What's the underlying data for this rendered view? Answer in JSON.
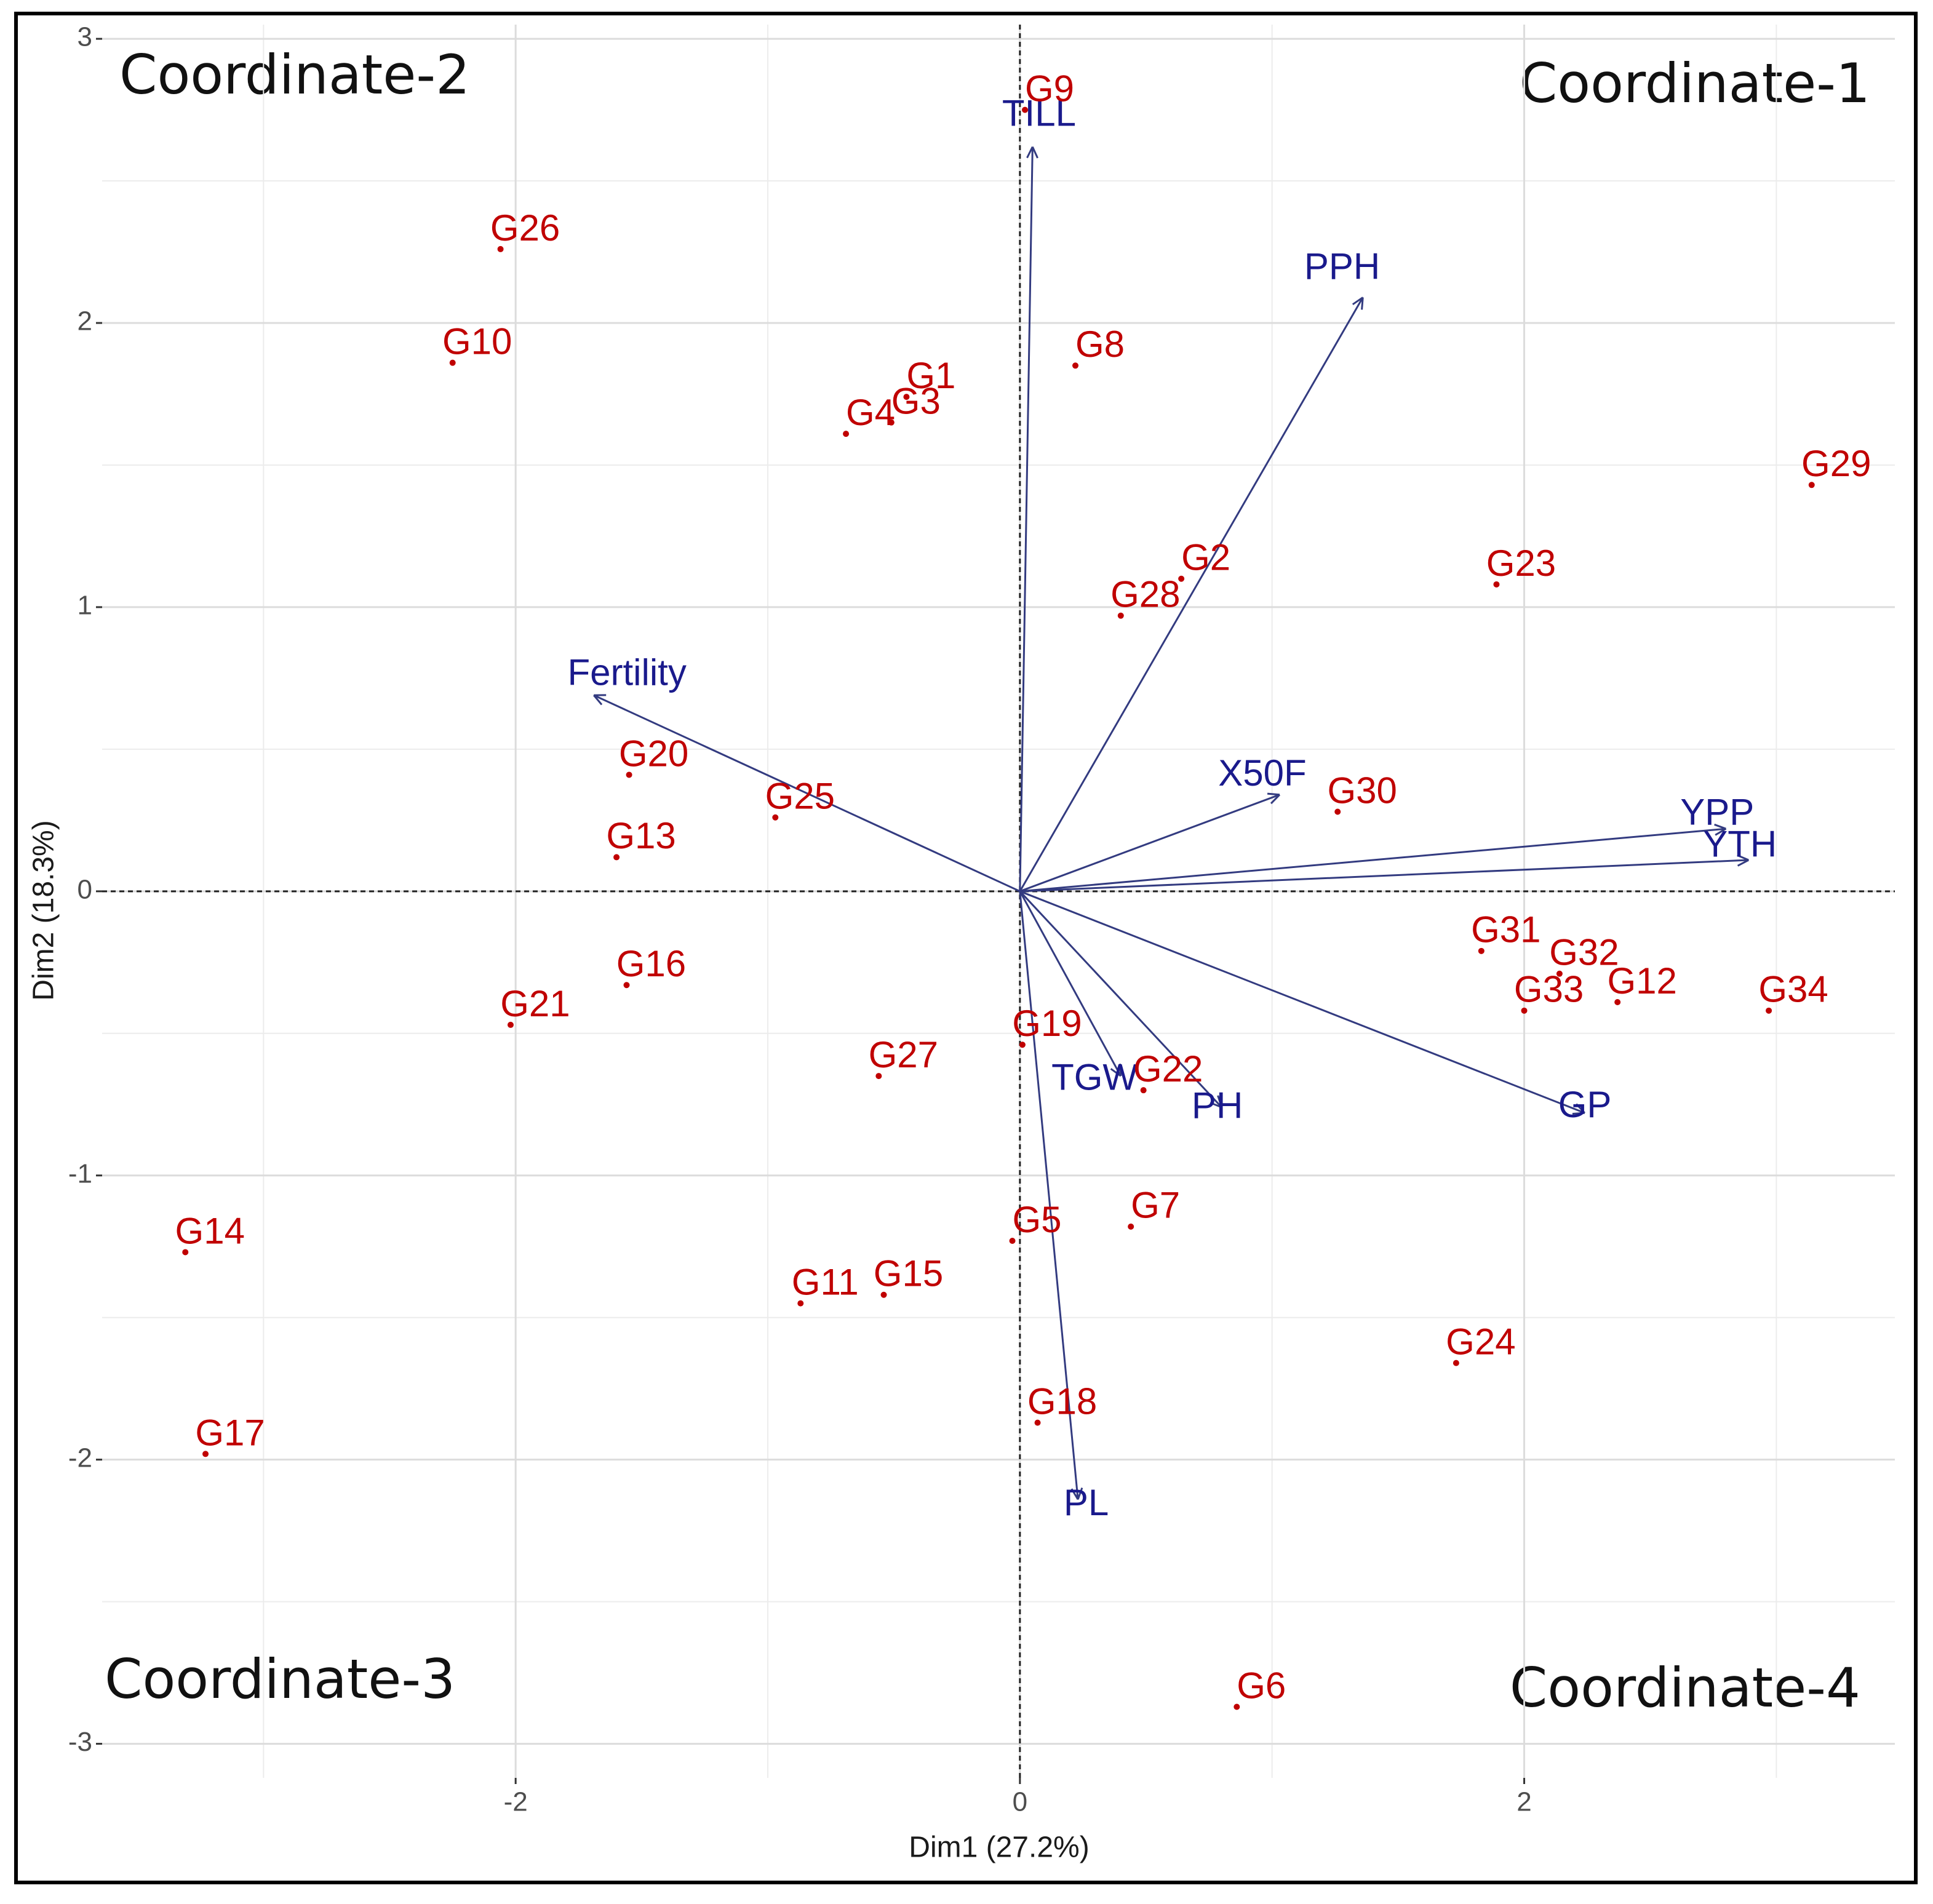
{
  "chart_data": {
    "type": "scatter",
    "xlabel": "Dim1 (27.2%)",
    "ylabel": "Dim2 (18.3%)",
    "xlim": [
      -3.64,
      3.47
    ],
    "ylim": [
      -3.12,
      3.05
    ],
    "xticks": [
      -2,
      0,
      2
    ],
    "yticks": [
      -3,
      -2,
      -1,
      0,
      1,
      2,
      3
    ],
    "xminor": [
      -3,
      -1,
      1,
      3
    ],
    "yminor": [
      -2.5,
      -1.5,
      -0.5,
      0.5,
      1.5,
      2.5
    ],
    "grid": true,
    "annotations": [
      "Coordinate-1",
      "Coordinate-2",
      "Coordinate-3",
      "Coordinate-4"
    ],
    "points": {
      "color": "#c00000",
      "labels": [
        "G1",
        "G2",
        "G3",
        "G4",
        "G5",
        "G6",
        "G7",
        "G8",
        "G9",
        "G10",
        "G11",
        "G12",
        "G13",
        "G14",
        "G15",
        "G16",
        "G17",
        "G18",
        "G19",
        "G20",
        "G21",
        "G22",
        "G23",
        "G24",
        "G25",
        "G26",
        "G27",
        "G28",
        "G29",
        "G30",
        "G31",
        "G32",
        "G33",
        "G34"
      ],
      "x": [
        -0.45,
        0.64,
        -0.51,
        -0.69,
        -0.03,
        0.86,
        0.44,
        0.22,
        0.02,
        -2.25,
        -0.87,
        2.37,
        -1.6,
        -3.31,
        -0.54,
        -1.56,
        -3.23,
        0.07,
        0.01,
        -1.55,
        -2.02,
        0.49,
        1.89,
        1.73,
        -0.97,
        -2.06,
        -0.56,
        0.4,
        3.14,
        1.26,
        1.83,
        2.14,
        2.0,
        2.97
      ],
      "y": [
        1.74,
        1.1,
        1.65,
        1.61,
        -1.23,
        -2.87,
        -1.18,
        1.85,
        2.75,
        1.86,
        -1.45,
        -0.39,
        0.12,
        -1.27,
        -1.42,
        -0.33,
        -1.98,
        -1.87,
        -0.54,
        0.41,
        -0.47,
        -0.7,
        1.08,
        -1.66,
        0.26,
        2.26,
        -0.65,
        0.97,
        1.43,
        0.28,
        -0.21,
        -0.29,
        -0.42,
        -0.42
      ]
    },
    "vectors": {
      "color": "#333b80",
      "label_color": "#1a1a8c",
      "labels": [
        "TILL",
        "PPH",
        "Fertility",
        "X50F",
        "YPP",
        "YTH",
        "GP",
        "TGW",
        "PH",
        "PL"
      ],
      "x": [
        0.05,
        1.36,
        -1.69,
        1.03,
        2.8,
        2.89,
        2.24,
        0.4,
        0.8,
        0.23
      ],
      "y": [
        2.62,
        2.09,
        0.69,
        0.34,
        0.22,
        0.11,
        -0.78,
        -0.65,
        -0.76,
        -2.14
      ]
    }
  }
}
